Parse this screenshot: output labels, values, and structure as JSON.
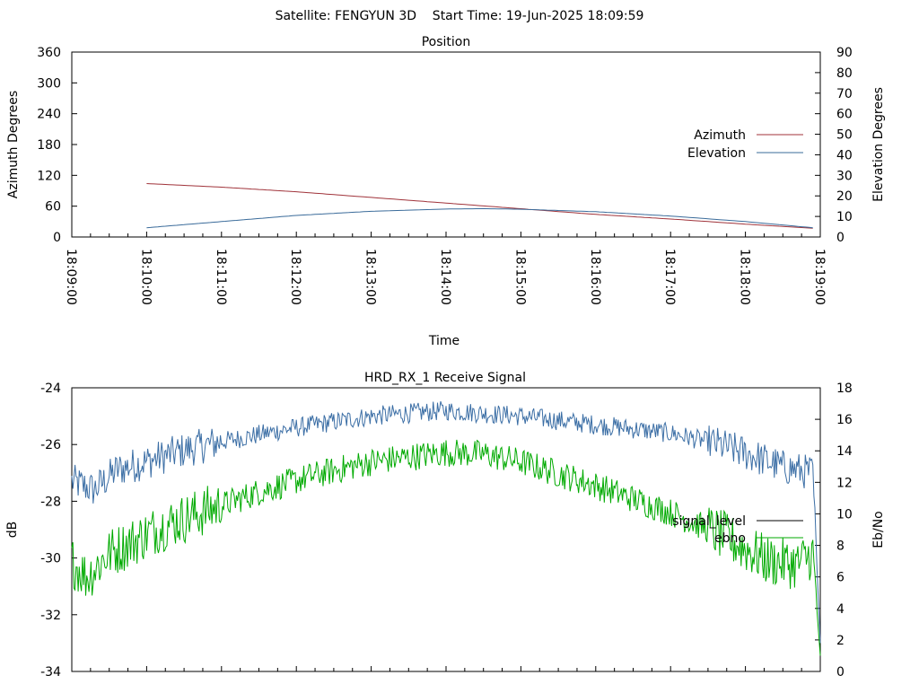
{
  "header": {
    "title": "Satellite: FENGYUN 3D    Start Time: 19-Jun-2025 18:09:59"
  },
  "chart_data": [
    {
      "type": "line",
      "title": "Position",
      "xlabel": "Time",
      "ylabel": "Azimuth Degrees",
      "y2label": "Elevation Degrees",
      "x_ticks": [
        "18:09:00",
        "18:10:00",
        "18:11:00",
        "18:12:00",
        "18:13:00",
        "18:14:00",
        "18:15:00",
        "18:16:00",
        "18:17:00",
        "18:18:00",
        "18:19:00"
      ],
      "x_minutes": [
        0,
        1,
        2,
        3,
        4,
        5,
        6,
        7,
        8,
        9,
        10
      ],
      "ylim": [
        0,
        360
      ],
      "y_ticks": [
        0,
        60,
        120,
        180,
        240,
        300,
        360
      ],
      "y2lim": [
        0,
        90
      ],
      "y2_ticks": [
        0,
        10,
        20,
        30,
        40,
        50,
        60,
        70,
        80,
        90
      ],
      "legend_position": "right",
      "series": [
        {
          "name": "Azimuth",
          "axis": "y",
          "color": "#a0333a",
          "x": [
            1.0,
            2.0,
            3.0,
            4.0,
            5.0,
            6.0,
            7.0,
            8.0,
            9.0,
            9.9
          ],
          "values": [
            104,
            97,
            88,
            77,
            66,
            55,
            44,
            35,
            25,
            17
          ]
        },
        {
          "name": "Elevation",
          "axis": "y2",
          "color": "#3a6b9a",
          "x": [
            1.0,
            2.0,
            3.0,
            4.0,
            5.0,
            5.5,
            6.0,
            7.0,
            8.0,
            9.0,
            9.9
          ],
          "values": [
            4.5,
            7.5,
            10.5,
            12.5,
            13.6,
            13.8,
            13.5,
            12.3,
            10.2,
            7.5,
            4.5
          ]
        }
      ]
    },
    {
      "type": "line",
      "title": "HRD_RX_1 Receive Signal",
      "ylabel": "dB",
      "y2label": "Eb/No",
      "ylim": [
        -34,
        -24
      ],
      "y_ticks": [
        -34,
        -32,
        -30,
        -28,
        -26,
        -24
      ],
      "y2lim": [
        0,
        18
      ],
      "y2_ticks": [
        0,
        2,
        4,
        6,
        8,
        10,
        12,
        14,
        16,
        18
      ],
      "legend_position": "right",
      "series": [
        {
          "name": "signal_level",
          "axis": "y",
          "legend_color": "#000000",
          "color": "#3b6ea5",
          "trend_x": [
            0.0,
            0.03,
            0.06,
            0.1,
            0.15,
            0.2,
            0.3,
            0.4,
            0.5,
            0.55,
            0.6,
            0.7,
            0.8,
            0.85,
            0.9,
            0.95,
            0.99,
            1.0
          ],
          "trend": [
            -27.3,
            -27.6,
            -26.9,
            -26.6,
            -26.2,
            -25.9,
            -25.4,
            -25.0,
            -24.8,
            -24.9,
            -25.0,
            -25.3,
            -25.6,
            -25.9,
            -26.3,
            -26.8,
            -27.0,
            -33.0
          ],
          "noise": 0.35
        },
        {
          "name": "ebno",
          "axis": "y2",
          "legend_color": "#00aa00",
          "color": "#00aa00",
          "trend_x": [
            0.0,
            0.02,
            0.05,
            0.08,
            0.12,
            0.18,
            0.25,
            0.32,
            0.4,
            0.5,
            0.55,
            0.6,
            0.7,
            0.8,
            0.87,
            0.93,
            0.97,
            0.99,
            1.0
          ],
          "trend": [
            7.0,
            6.0,
            7.5,
            8.2,
            9.2,
            10.2,
            11.4,
            12.4,
            13.3,
            13.9,
            13.8,
            13.3,
            11.8,
            10.1,
            8.6,
            7.0,
            6.8,
            7.5,
            1.0
          ],
          "noise": 0.9
        }
      ]
    }
  ]
}
